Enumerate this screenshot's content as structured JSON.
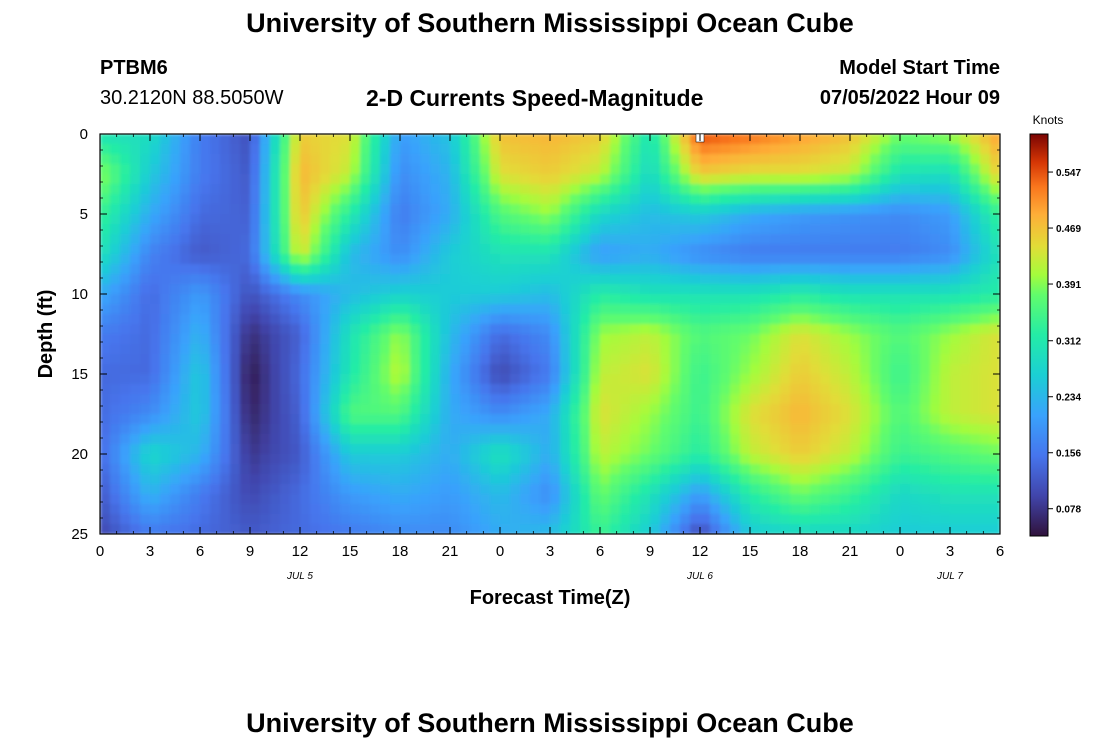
{
  "header": {
    "title": "University of Southern Mississippi Ocean Cube",
    "station": "PTBM6",
    "coords": "30.2120N  88.5050W",
    "subtitle": "2-D Currents Speed-Magnitude",
    "model_start_label": "Model Start Time",
    "model_start_value": "07/05/2022 Hour 09"
  },
  "footer": {
    "title": "University of Southern Mississippi Ocean Cube"
  },
  "chart_data": {
    "type": "heatmap",
    "title": "2-D Currents Speed-Magnitude",
    "xlabel": "Forecast Time(Z)",
    "ylabel": "Depth (ft)",
    "x_ticks": [
      "0",
      "3",
      "6",
      "9",
      "12",
      "15",
      "18",
      "21",
      "0",
      "3",
      "6",
      "9",
      "12",
      "15",
      "18",
      "21",
      "0",
      "3",
      "6"
    ],
    "x_range_hours": [
      0,
      54
    ],
    "y_ticks": [
      0,
      5,
      10,
      15,
      20,
      25
    ],
    "ylim": [
      25,
      0
    ],
    "date_labels": [
      {
        "text": "JUL 5",
        "hour": 12
      },
      {
        "text": "JUL 6",
        "hour": 36
      },
      {
        "text": "JUL 7",
        "hour": 51
      }
    ],
    "colorbar": {
      "label": "Knots",
      "ticks": [
        0.547,
        0.469,
        0.391,
        0.312,
        0.234,
        0.156,
        0.078
      ],
      "range": [
        0.04,
        0.6
      ]
    },
    "x_hours": [
      0,
      3,
      6,
      9,
      12,
      15,
      18,
      21,
      24,
      27,
      30,
      33,
      36,
      39,
      42,
      45,
      48,
      51,
      54
    ],
    "depths": [
      0,
      2.5,
      5,
      7.5,
      10,
      12.5,
      15,
      17.5,
      20,
      22.5,
      25
    ],
    "values": [
      [
        0.3,
        0.29,
        0.16,
        0.11,
        0.46,
        0.44,
        0.2,
        0.25,
        0.47,
        0.48,
        0.46,
        0.3,
        0.55,
        0.53,
        0.5,
        0.47,
        0.38,
        0.4,
        0.5
      ],
      [
        0.4,
        0.26,
        0.16,
        0.12,
        0.48,
        0.42,
        0.18,
        0.23,
        0.44,
        0.46,
        0.42,
        0.28,
        0.46,
        0.44,
        0.44,
        0.42,
        0.3,
        0.29,
        0.46
      ],
      [
        0.34,
        0.22,
        0.14,
        0.13,
        0.47,
        0.32,
        0.16,
        0.22,
        0.36,
        0.4,
        0.28,
        0.24,
        0.26,
        0.22,
        0.2,
        0.19,
        0.18,
        0.2,
        0.34
      ],
      [
        0.3,
        0.17,
        0.12,
        0.14,
        0.44,
        0.24,
        0.18,
        0.26,
        0.3,
        0.3,
        0.2,
        0.22,
        0.18,
        0.16,
        0.16,
        0.16,
        0.16,
        0.18,
        0.3
      ],
      [
        0.22,
        0.14,
        0.2,
        0.11,
        0.18,
        0.24,
        0.27,
        0.26,
        0.26,
        0.24,
        0.32,
        0.3,
        0.3,
        0.3,
        0.32,
        0.3,
        0.3,
        0.3,
        0.32
      ],
      [
        0.16,
        0.14,
        0.23,
        0.07,
        0.13,
        0.3,
        0.4,
        0.24,
        0.14,
        0.18,
        0.4,
        0.42,
        0.36,
        0.38,
        0.44,
        0.4,
        0.36,
        0.4,
        0.44
      ],
      [
        0.14,
        0.14,
        0.26,
        0.05,
        0.14,
        0.31,
        0.42,
        0.22,
        0.1,
        0.16,
        0.42,
        0.44,
        0.34,
        0.4,
        0.46,
        0.42,
        0.34,
        0.42,
        0.44
      ],
      [
        0.14,
        0.18,
        0.26,
        0.06,
        0.13,
        0.36,
        0.36,
        0.22,
        0.18,
        0.22,
        0.44,
        0.4,
        0.34,
        0.44,
        0.48,
        0.44,
        0.36,
        0.42,
        0.44
      ],
      [
        0.14,
        0.28,
        0.23,
        0.08,
        0.12,
        0.26,
        0.26,
        0.22,
        0.3,
        0.22,
        0.42,
        0.38,
        0.32,
        0.42,
        0.46,
        0.42,
        0.34,
        0.36,
        0.38
      ],
      [
        0.12,
        0.23,
        0.16,
        0.1,
        0.14,
        0.2,
        0.22,
        0.2,
        0.24,
        0.18,
        0.38,
        0.3,
        0.2,
        0.32,
        0.38,
        0.34,
        0.28,
        0.3,
        0.3
      ],
      [
        0.1,
        0.16,
        0.14,
        0.12,
        0.14,
        0.16,
        0.18,
        0.18,
        0.22,
        0.24,
        0.34,
        0.26,
        0.1,
        0.26,
        0.28,
        0.28,
        0.26,
        0.26,
        0.26
      ]
    ]
  }
}
